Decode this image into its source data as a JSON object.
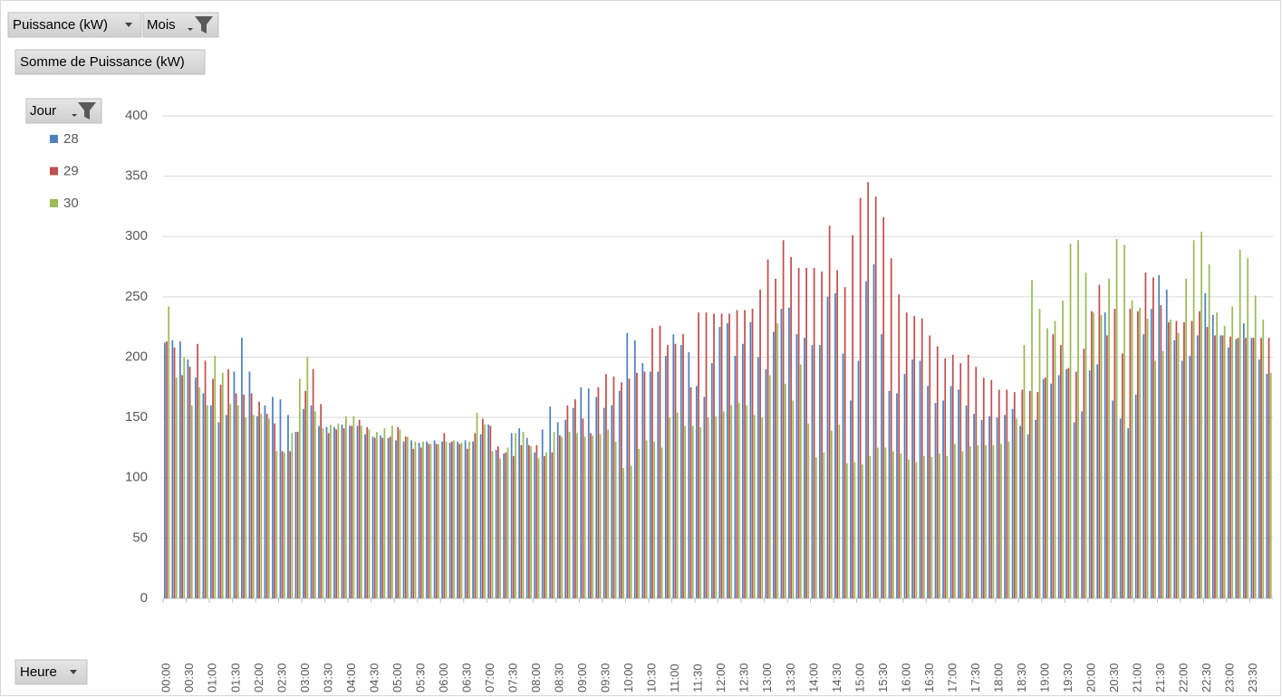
{
  "field_buttons": {
    "value_field": "Puissance (kW)",
    "month": "Mois",
    "measure": "Somme de Puissance (kW)",
    "legend_field": "Jour",
    "axis_field": "Heure"
  },
  "chart_data": {
    "type": "bar",
    "categories": [
      "00:00",
      null,
      null,
      "00:30",
      null,
      null,
      "01:00",
      null,
      null,
      "01:30",
      null,
      null,
      "02:00",
      null,
      null,
      "02:30",
      null,
      null,
      "03:00",
      null,
      null,
      "03:30",
      null,
      null,
      "04:00",
      null,
      null,
      "04:30",
      null,
      null,
      "05:00",
      null,
      null,
      "05:30",
      null,
      null,
      "06:00",
      null,
      null,
      "06:30",
      null,
      null,
      "07:00",
      null,
      null,
      "07:30",
      null,
      null,
      "08:00",
      null,
      null,
      "08:30",
      null,
      null,
      "09:00",
      null,
      null,
      "09:30",
      null,
      null,
      "10:00",
      null,
      null,
      "10:30",
      null,
      null,
      "11:00",
      null,
      null,
      "11:30",
      null,
      null,
      "12:00",
      null,
      null,
      "12:30",
      null,
      null,
      "13:00",
      null,
      null,
      "13:30",
      null,
      null,
      "14:00",
      null,
      null,
      "14:30",
      null,
      null,
      "15:00",
      null,
      null,
      "15:30",
      null,
      null,
      "16:00",
      null,
      null,
      "16:30",
      null,
      null,
      "17:00",
      null,
      null,
      "17:30",
      null,
      null,
      "18:00",
      null,
      null,
      "18:30",
      null,
      null,
      "19:00",
      null,
      null,
      "19:30",
      null,
      null,
      "20:00",
      null,
      null,
      "20:30",
      null,
      null,
      "21:00",
      null,
      null,
      "21:30",
      null,
      null,
      "22:00",
      null,
      null,
      "22:30",
      null,
      null,
      "23:00",
      null,
      null,
      "23:30",
      null,
      null
    ],
    "series": [
      {
        "name": "28",
        "color": "#4f81bd",
        "values": [
          212,
          214,
          213,
          198,
          183,
          170,
          160,
          146,
          152,
          188,
          216,
          188,
          151,
          160,
          167,
          165,
          152,
          138,
          157,
          160,
          143,
          142,
          142,
          144,
          143,
          143,
          136,
          134,
          135,
          133,
          131,
          130,
          131,
          129,
          130,
          131,
          130,
          129,
          130,
          131,
          130,
          136,
          144,
          123,
          120,
          137,
          141,
          133,
          121,
          140,
          159,
          146,
          148,
          158,
          175,
          174,
          167,
          158,
          160,
          172,
          220,
          214,
          195,
          188,
          188,
          201,
          219,
          210,
          204,
          176,
          167,
          195,
          225,
          228,
          201,
          211,
          229,
          200,
          190,
          221,
          240,
          241,
          219,
          216,
          210,
          210,
          250,
          253,
          203,
          164,
          197,
          263,
          277,
          219,
          172,
          170,
          186,
          198,
          197,
          176,
          162,
          164,
          176,
          173,
          160,
          153,
          148,
          151,
          150,
          152,
          157,
          143,
          136,
          148,
          182,
          178,
          185,
          190,
          146,
          155,
          189,
          194,
          237,
          164,
          149,
          141,
          169,
          219,
          240,
          268,
          256,
          214,
          197,
          201,
          218,
          253,
          235,
          218,
          208,
          215,
          228,
          216,
          198,
          186
        ]
      },
      {
        "name": "29",
        "color": "#c0504d",
        "values": [
          213,
          208,
          185,
          192,
          211,
          197,
          182,
          177,
          190,
          170,
          169,
          170,
          163,
          153,
          145,
          122,
          122,
          138,
          172,
          190,
          161,
          137,
          140,
          141,
          143,
          148,
          142,
          133,
          133,
          134,
          142,
          134,
          124,
          125,
          128,
          128,
          137,
          130,
          128,
          124,
          137,
          149,
          143,
          126,
          121,
          118,
          127,
          127,
          127,
          118,
          121,
          135,
          160,
          165,
          149,
          137,
          175,
          186,
          184,
          179,
          182,
          187,
          188,
          224,
          226,
          210,
          211,
          219,
          175,
          237,
          237,
          236,
          236,
          236,
          239,
          239,
          240,
          256,
          281,
          265,
          297,
          283,
          274,
          274,
          274,
          271,
          309,
          272,
          258,
          301,
          332,
          345,
          333,
          316,
          282,
          252,
          237,
          234,
          232,
          218,
          209,
          199,
          202,
          195,
          202,
          192,
          183,
          181,
          173,
          173,
          171,
          173,
          172,
          171,
          183,
          219,
          210,
          191,
          188,
          207,
          238,
          260,
          218,
          240,
          203,
          240,
          238,
          270,
          266,
          243,
          229,
          230,
          229,
          230,
          238,
          225,
          218,
          218,
          217,
          216,
          216,
          216,
          216,
          216
        ]
      },
      {
        "name": "30",
        "color": "#9bbb59",
        "values": [
          242,
          183,
          200,
          160,
          175,
          160,
          201,
          187,
          161,
          160,
          150,
          152,
          153,
          149,
          122,
          121,
          137,
          182,
          200,
          155,
          141,
          144,
          145,
          151,
          151,
          143,
          140,
          138,
          141,
          143,
          140,
          134,
          130,
          130,
          128,
          128,
          130,
          131,
          129,
          130,
          154,
          144,
          122,
          116,
          125,
          137,
          138,
          126,
          116,
          121,
          138,
          134,
          138,
          137,
          134,
          135,
          136,
          140,
          130,
          108,
          110,
          124,
          131,
          130,
          125,
          150,
          154,
          143,
          143,
          142,
          150,
          151,
          155,
          160,
          162,
          160,
          152,
          150,
          185,
          228,
          178,
          164,
          194,
          145,
          117,
          121,
          139,
          144,
          112,
          113,
          111,
          118,
          125,
          125,
          122,
          120,
          115,
          113,
          118,
          117,
          120,
          118,
          128,
          122,
          126,
          127,
          127,
          127,
          128,
          130,
          149,
          210,
          264,
          240,
          224,
          230,
          247,
          294,
          297,
          270,
          237,
          235,
          265,
          298,
          293,
          247,
          241,
          232,
          197,
          205,
          231,
          220,
          265,
          297,
          304,
          277,
          237,
          226,
          242,
          289,
          282,
          251,
          231,
          187
        ]
      }
    ],
    "ylim": [
      0,
      400
    ],
    "yticks": [
      0,
      50,
      100,
      150,
      200,
      250,
      300,
      350,
      400
    ],
    "grid": true
  }
}
